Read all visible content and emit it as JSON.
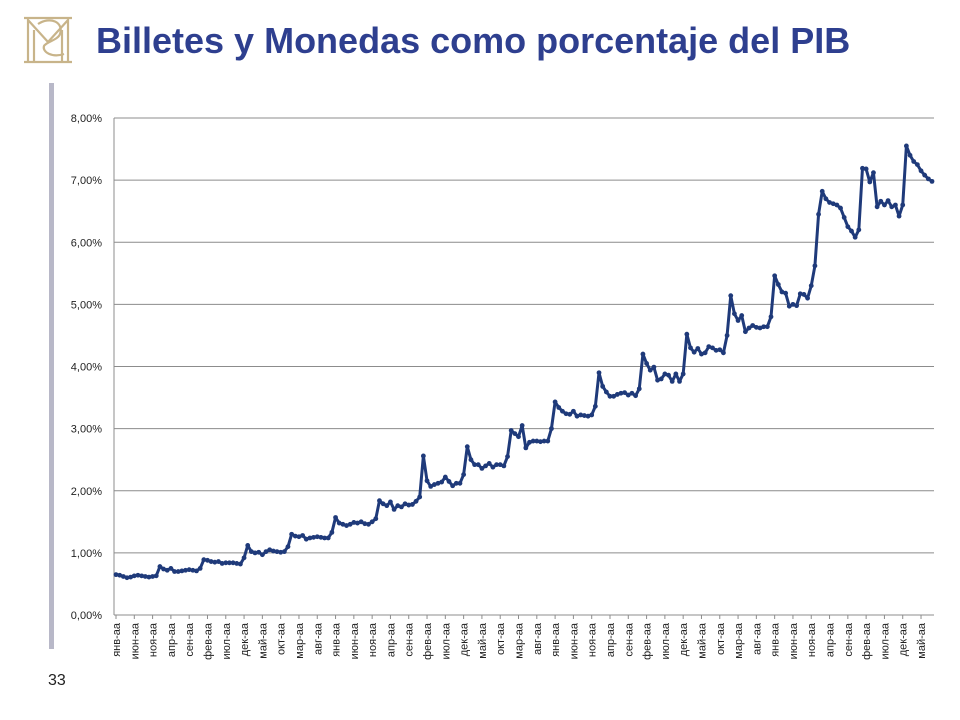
{
  "header": {
    "title": "Billetes y Monedas como porcentaje del PIB"
  },
  "footer": {
    "page_number": "33"
  },
  "logo": {
    "name": "banco-de-espana-monogram-logo",
    "color": "#c8b48a"
  },
  "colors": {
    "title": "#2e3f8f",
    "line": "#1f3a7a",
    "grid": "#8c8c8c",
    "accent_bar": "#b8b8c8"
  },
  "chart_data": {
    "type": "line",
    "title": "",
    "xlabel": "",
    "ylabel": "",
    "ylim": [
      0,
      8
    ],
    "y_tick_labels": [
      "0,00%",
      "1,00%",
      "2,00%",
      "3,00%",
      "4,00%",
      "5,00%",
      "6,00%",
      "7,00%",
      "8,00%"
    ],
    "x_tick_labels": [
      "янв-аа",
      "июн-аа",
      "ноя-аа",
      "апр-аа",
      "сен-аа",
      "фев-аа",
      "июл-аа",
      "дек-аа",
      "май-аа",
      "окт-аа",
      "мар-аа",
      "авг-аа",
      "янв-аа",
      "июн-аа",
      "ноя-аа",
      "апр-аа",
      "сен-аа",
      "фев-аа",
      "июл-аа",
      "дек-аа",
      "май-аа",
      "окт-аа",
      "мар-аа",
      "авг-аа",
      "янв-аа",
      "июн-аа",
      "ноя-аа",
      "апр-аа",
      "сен-аа",
      "фев-аа",
      "июл-аа",
      "дек-аа",
      "май-аа",
      "окт-аа",
      "мар-аа",
      "авг-аа",
      "янв-аа",
      "июн-аа",
      "ноя-аа",
      "апр-аа",
      "сен-аа",
      "фев-аа",
      "июл-аа",
      "дек-аа",
      "май-аа"
    ],
    "x_tick_step": 5,
    "grid": true,
    "legend": "none",
    "series": [
      {
        "values": [
          0.65,
          0.64,
          0.62,
          0.6,
          0.61,
          0.63,
          0.64,
          0.63,
          0.62,
          0.61,
          0.62,
          0.63,
          0.78,
          0.74,
          0.72,
          0.75,
          0.7,
          0.7,
          0.71,
          0.72,
          0.73,
          0.72,
          0.71,
          0.75,
          0.89,
          0.88,
          0.86,
          0.85,
          0.86,
          0.83,
          0.84,
          0.84,
          0.84,
          0.83,
          0.82,
          0.92,
          1.12,
          1.02,
          1.0,
          1.01,
          0.97,
          1.02,
          1.05,
          1.03,
          1.02,
          1.01,
          1.02,
          1.1,
          1.3,
          1.27,
          1.26,
          1.28,
          1.22,
          1.24,
          1.25,
          1.26,
          1.25,
          1.24,
          1.24,
          1.33,
          1.57,
          1.48,
          1.46,
          1.44,
          1.46,
          1.49,
          1.48,
          1.5,
          1.47,
          1.46,
          1.5,
          1.55,
          1.84,
          1.79,
          1.76,
          1.82,
          1.7,
          1.76,
          1.74,
          1.79,
          1.77,
          1.78,
          1.83,
          1.9,
          2.56,
          2.16,
          2.07,
          2.1,
          2.12,
          2.14,
          2.22,
          2.15,
          2.08,
          2.12,
          2.12,
          2.26,
          2.71,
          2.5,
          2.42,
          2.42,
          2.36,
          2.4,
          2.44,
          2.38,
          2.42,
          2.42,
          2.4,
          2.55,
          2.97,
          2.92,
          2.87,
          3.05,
          2.69,
          2.78,
          2.8,
          2.8,
          2.79,
          2.8,
          2.8,
          3.0,
          3.43,
          3.34,
          3.28,
          3.24,
          3.23,
          3.28,
          3.2,
          3.22,
          3.21,
          3.2,
          3.22,
          3.36,
          3.9,
          3.68,
          3.59,
          3.52,
          3.52,
          3.55,
          3.57,
          3.58,
          3.54,
          3.57,
          3.53,
          3.64,
          4.2,
          4.05,
          3.94,
          3.99,
          3.78,
          3.8,
          3.88,
          3.86,
          3.76,
          3.88,
          3.76,
          3.88,
          4.52,
          4.3,
          4.23,
          4.29,
          4.2,
          4.22,
          4.32,
          4.3,
          4.26,
          4.27,
          4.22,
          4.5,
          5.14,
          4.85,
          4.74,
          4.82,
          4.56,
          4.62,
          4.66,
          4.63,
          4.62,
          4.64,
          4.64,
          4.8,
          5.46,
          5.32,
          5.2,
          5.18,
          4.97,
          5.0,
          4.98,
          5.17,
          5.16,
          5.1,
          5.3,
          5.62,
          6.45,
          6.82,
          6.7,
          6.64,
          6.62,
          6.6,
          6.55,
          6.4,
          6.25,
          6.18,
          6.08,
          6.2,
          7.19,
          7.18,
          6.97,
          7.12,
          6.57,
          6.66,
          6.6,
          6.67,
          6.57,
          6.6,
          6.42,
          6.6,
          7.55,
          7.4,
          7.3,
          7.25,
          7.15,
          7.08,
          7.02,
          6.98
        ]
      }
    ]
  }
}
